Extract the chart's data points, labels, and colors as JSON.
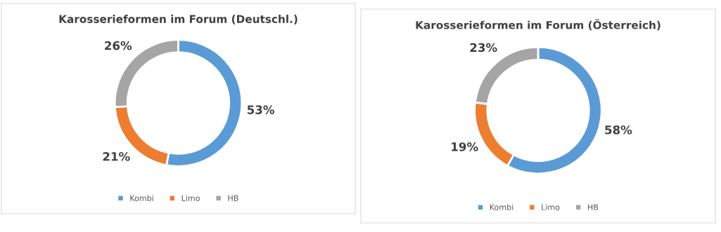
{
  "chart_data": [
    {
      "type": "donut",
      "title": "Karosserieformen im Forum (Deutschl.)",
      "categories": [
        "Kombi",
        "Limo",
        "HB"
      ],
      "values": [
        53,
        21,
        26
      ],
      "value_labels": [
        "53%",
        "21%",
        "26%"
      ],
      "colors": [
        "#5b9bd5",
        "#ed7d31",
        "#a5a5a5"
      ],
      "legend": "bottom"
    },
    {
      "type": "donut",
      "title": "Karosserieformen im Forum (Österreich)",
      "categories": [
        "Kombi",
        "Limo",
        "HB"
      ],
      "values": [
        58,
        19,
        23
      ],
      "value_labels": [
        "58%",
        "19%",
        "23%"
      ],
      "colors": [
        "#5b9bd5",
        "#ed7d31",
        "#a5a5a5"
      ],
      "legend": "bottom"
    }
  ]
}
